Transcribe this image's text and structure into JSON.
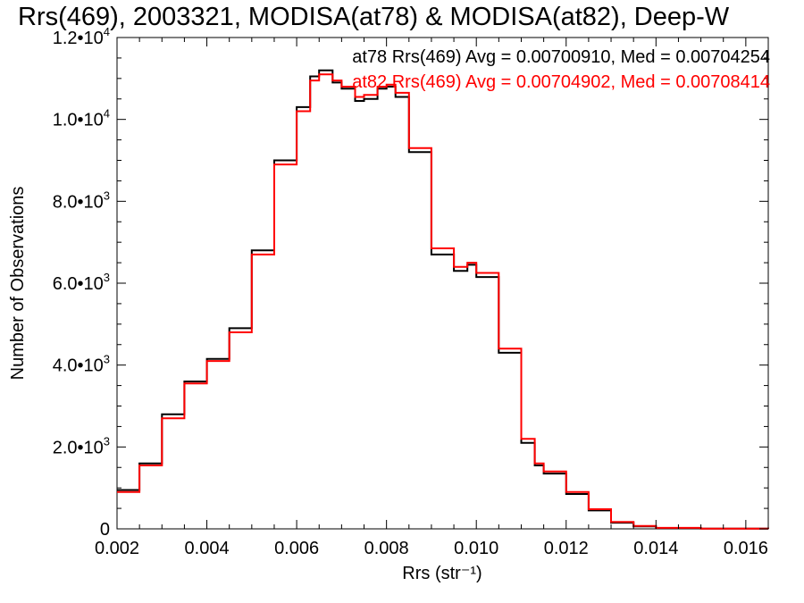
{
  "chart_data": {
    "type": "line",
    "title": "Rrs(469), 2003321, MODISA(at78) & MODISA(at82), Deep-W",
    "xlabel": "Rrs (str⁻¹)",
    "ylabel": "Number of Observations",
    "xlim": [
      0.002,
      0.0165
    ],
    "ylim": [
      0,
      12000
    ],
    "grid": false,
    "x_ticks": [
      "0.002",
      "0.004",
      "0.006",
      "0.008",
      "0.010",
      "0.012",
      "0.014",
      "0.016"
    ],
    "x_tick_values": [
      0.002,
      0.004,
      0.006,
      0.008,
      0.01,
      0.012,
      0.014,
      0.016
    ],
    "y_ticks": [
      {
        "value": 0,
        "mantissa": "0",
        "exp": ""
      },
      {
        "value": 2000,
        "mantissa": "2.0•10",
        "exp": "3"
      },
      {
        "value": 4000,
        "mantissa": "4.0•10",
        "exp": "3"
      },
      {
        "value": 6000,
        "mantissa": "6.0•10",
        "exp": "3"
      },
      {
        "value": 8000,
        "mantissa": "8.0•10",
        "exp": "3"
      },
      {
        "value": 10000,
        "mantissa": "1.0•10",
        "exp": "4"
      },
      {
        "value": 12000,
        "mantissa": "1.2•10",
        "exp": "4"
      }
    ],
    "annotations": [
      {
        "text": "at78 Rrs(469) Avg = 0.00700910, Med = 0.00704254",
        "color": "#000000"
      },
      {
        "text": "at82 Rrs(469) Avg = 0.00704902, Med = 0.00708414",
        "color": "#ff0000"
      }
    ],
    "series": [
      {
        "color": "#000000",
        "x": [
          0.002,
          0.0025,
          0.003,
          0.0035,
          0.004,
          0.0045,
          0.005,
          0.0055,
          0.006,
          0.0063,
          0.0065,
          0.0068,
          0.007,
          0.0073,
          0.0075,
          0.0078,
          0.008,
          0.0082,
          0.0085,
          0.009,
          0.0095,
          0.0098,
          0.01,
          0.0105,
          0.011,
          0.0113,
          0.0115,
          0.012,
          0.0125,
          0.013,
          0.0135,
          0.014,
          0.015,
          0.0165
        ],
        "values": [
          950,
          1600,
          2800,
          3600,
          4150,
          4900,
          6800,
          9000,
          10300,
          11050,
          11200,
          10900,
          10750,
          10450,
          10500,
          10750,
          10800,
          10550,
          9200,
          6700,
          6300,
          6450,
          6150,
          4300,
          2100,
          1550,
          1350,
          850,
          450,
          150,
          60,
          20,
          5,
          0
        ]
      },
      {
        "color": "#ff0000",
        "x": [
          0.002,
          0.0025,
          0.003,
          0.0035,
          0.004,
          0.0045,
          0.005,
          0.0055,
          0.006,
          0.0063,
          0.0065,
          0.0068,
          0.007,
          0.0073,
          0.0075,
          0.0078,
          0.008,
          0.0082,
          0.0085,
          0.009,
          0.0095,
          0.0098,
          0.01,
          0.0105,
          0.011,
          0.0113,
          0.0115,
          0.012,
          0.0125,
          0.013,
          0.0135,
          0.014,
          0.015,
          0.0165
        ],
        "values": [
          900,
          1550,
          2700,
          3550,
          4100,
          4800,
          6700,
          8900,
          10200,
          10950,
          11100,
          10950,
          10800,
          10550,
          10600,
          10800,
          10850,
          10650,
          9300,
          6850,
          6400,
          6500,
          6250,
          4400,
          2200,
          1600,
          1400,
          900,
          480,
          170,
          70,
          25,
          6,
          0
        ]
      }
    ]
  }
}
